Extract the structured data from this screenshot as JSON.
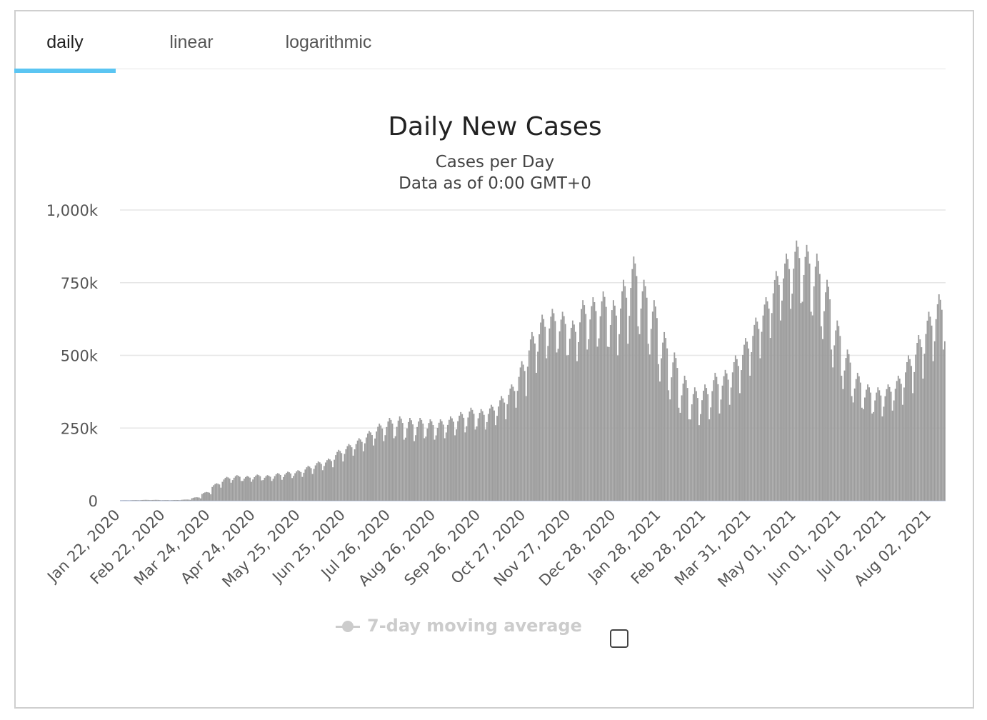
{
  "tabs": [
    {
      "label": "daily"
    },
    {
      "label": "linear"
    },
    {
      "label": "logarithmic"
    }
  ],
  "active_tab": "daily",
  "legend": {
    "label": "7-day moving average",
    "checkbox_checked": false
  },
  "colors": {
    "bars": "#9c9c9c",
    "tab_accent": "#5bc5f2",
    "grid": "#e6e6e6",
    "legend_disabled": "#cccccc"
  },
  "chart_data": {
    "type": "bar",
    "title": "Daily New Cases",
    "subtitle": [
      "Cases per Day",
      "Data as of 0:00 GMT+0"
    ],
    "xlabel": "",
    "ylabel": "",
    "ylim": [
      0,
      1000000
    ],
    "y_tick_values": [
      0,
      250000,
      500000,
      750000,
      1000000
    ],
    "y_tick_labels": [
      "0",
      "250k",
      "500k",
      "750k",
      "1,000k"
    ],
    "x_start": "2020-01-22",
    "x_end": "2021-08-11",
    "x_tick_dates": [
      "2020-01-22",
      "2020-02-22",
      "2020-03-24",
      "2020-04-24",
      "2020-05-25",
      "2020-06-25",
      "2020-07-26",
      "2020-08-26",
      "2020-09-26",
      "2020-10-27",
      "2020-11-27",
      "2020-12-28",
      "2021-01-28",
      "2021-02-28",
      "2021-03-31",
      "2021-05-01",
      "2021-06-01",
      "2021-07-02",
      "2021-08-02"
    ],
    "x_tick_labels": [
      "Jan 22, 2020",
      "Feb 22, 2020",
      "Mar 24, 2020",
      "Apr 24, 2020",
      "May 25, 2020",
      "Jun 25, 2020",
      "Jul 26, 2020",
      "Aug 26, 2020",
      "Sep 26, 2020",
      "Oct 27, 2020",
      "Nov 27, 2020",
      "Dec 28, 2020",
      "Jan 28, 2021",
      "Feb 28, 2021",
      "Mar 31, 2021",
      "May 01, 2021",
      "Jun 01, 2021",
      "Jul 02, 2021",
      "Aug 02, 2021"
    ],
    "gridlines": true,
    "series": [
      {
        "values_note": "weekly peak / trough of daily new cases, one entry per week starting Jan 22, 2020",
        "week_start": [
          "2020-01-22",
          "2020-01-29",
          "2020-02-05",
          "2020-02-12",
          "2020-02-19",
          "2020-02-26",
          "2020-03-04",
          "2020-03-11",
          "2020-03-18",
          "2020-03-25",
          "2020-04-01",
          "2020-04-08",
          "2020-04-15",
          "2020-04-22",
          "2020-04-29",
          "2020-05-06",
          "2020-05-13",
          "2020-05-20",
          "2020-05-27",
          "2020-06-03",
          "2020-06-10",
          "2020-06-17",
          "2020-06-24",
          "2020-07-01",
          "2020-07-08",
          "2020-07-15",
          "2020-07-22",
          "2020-07-29",
          "2020-08-05",
          "2020-08-12",
          "2020-08-19",
          "2020-08-26",
          "2020-09-02",
          "2020-09-09",
          "2020-09-16",
          "2020-09-23",
          "2020-09-30",
          "2020-10-07",
          "2020-10-14",
          "2020-10-21",
          "2020-10-28",
          "2020-11-04",
          "2020-11-11",
          "2020-11-18",
          "2020-11-25",
          "2020-12-02",
          "2020-12-09",
          "2020-12-16",
          "2020-12-23",
          "2020-12-30",
          "2021-01-06",
          "2021-01-13",
          "2021-01-20",
          "2021-01-27",
          "2021-02-03",
          "2021-02-10",
          "2021-02-17",
          "2021-02-24",
          "2021-03-03",
          "2021-03-10",
          "2021-03-17",
          "2021-03-24",
          "2021-03-31",
          "2021-04-07",
          "2021-04-14",
          "2021-04-21",
          "2021-04-28",
          "2021-05-05",
          "2021-05-12",
          "2021-05-19",
          "2021-05-26",
          "2021-06-02",
          "2021-06-09",
          "2021-06-16",
          "2021-06-23",
          "2021-06-30",
          "2021-07-07",
          "2021-07-14",
          "2021-07-21",
          "2021-07-28",
          "2021-08-04"
        ],
        "weekly_peak": [
          1000,
          2000,
          3000,
          3000,
          2000,
          2500,
          4000,
          12000,
          30000,
          60000,
          82000,
          88000,
          85000,
          90000,
          88000,
          95000,
          100000,
          105000,
          120000,
          135000,
          145000,
          175000,
          195000,
          215000,
          240000,
          265000,
          285000,
          290000,
          285000,
          285000,
          280000,
          280000,
          290000,
          305000,
          320000,
          315000,
          330000,
          360000,
          400000,
          480000,
          580000,
          640000,
          660000,
          650000,
          620000,
          690000,
          700000,
          720000,
          690000,
          760000,
          840000,
          760000,
          690000,
          580000,
          510000,
          430000,
          390000,
          400000,
          440000,
          450000,
          500000,
          560000,
          630000,
          700000,
          790000,
          850000,
          895000,
          880000,
          850000,
          760000,
          620000,
          520000,
          440000,
          400000,
          390000,
          400000,
          430000,
          500000,
          570000,
          650000,
          710000
        ],
        "weekly_trough": [
          500,
          1000,
          2000,
          2000,
          1000,
          1500,
          3000,
          8000,
          22000,
          45000,
          62000,
          68000,
          65000,
          70000,
          68000,
          72000,
          78000,
          82000,
          92000,
          105000,
          115000,
          135000,
          155000,
          170000,
          190000,
          205000,
          215000,
          210000,
          205000,
          215000,
          210000,
          215000,
          225000,
          235000,
          245000,
          245000,
          260000,
          280000,
          320000,
          360000,
          440000,
          490000,
          510000,
          500000,
          480000,
          520000,
          530000,
          530000,
          500000,
          540000,
          600000,
          540000,
          470000,
          380000,
          320000,
          280000,
          260000,
          280000,
          300000,
          330000,
          370000,
          430000,
          490000,
          560000,
          620000,
          660000,
          680000,
          650000,
          600000,
          520000,
          430000,
          360000,
          320000,
          300000,
          290000,
          310000,
          330000,
          370000,
          420000,
          480000,
          520000
        ]
      }
    ]
  }
}
